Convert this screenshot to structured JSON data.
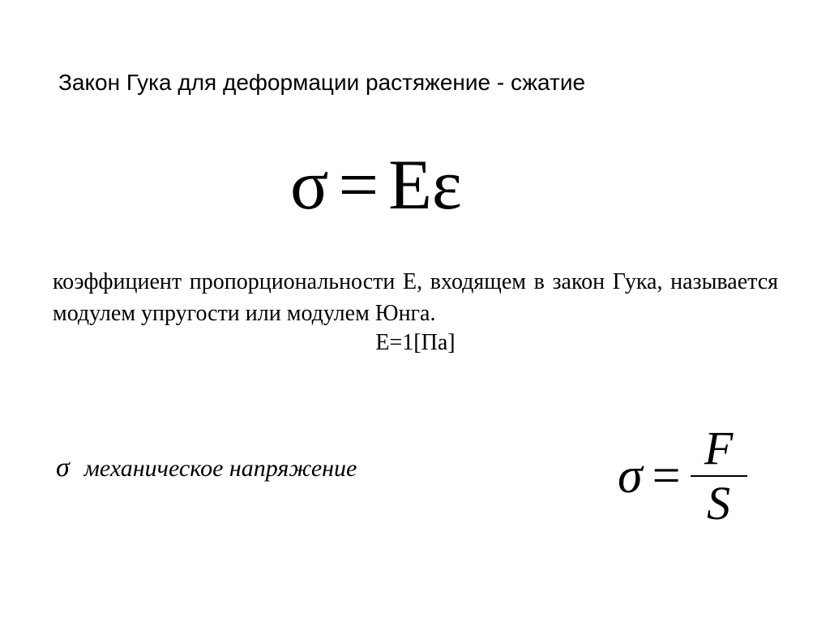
{
  "title": "Закон Гука для деформации растяжение - сжатие",
  "mainEquation": {
    "sigma": "σ",
    "equals": "=",
    "E": "E",
    "epsilon": "ε"
  },
  "description": "коэффициент пропорциональности Е, входящем в закон Гука, называется модулем упругости или модулем Юнга.",
  "unitLine": "Е=1[Па]",
  "stressLabel": {
    "sigma": "σ",
    "text": "механическое напряжение"
  },
  "stressEquation": {
    "sigma": "σ",
    "equals": "=",
    "numerator": "F",
    "denominator": "S"
  },
  "colors": {
    "background": "#ffffff",
    "text": "#000000"
  },
  "fonts": {
    "titleFamily": "Arial",
    "bodyFamily": "Times New Roman",
    "titleSize": 28,
    "mainEquationSize": 88,
    "descriptionSize": 28,
    "stressLabelSize": 30,
    "stressEquationSize": 62
  }
}
